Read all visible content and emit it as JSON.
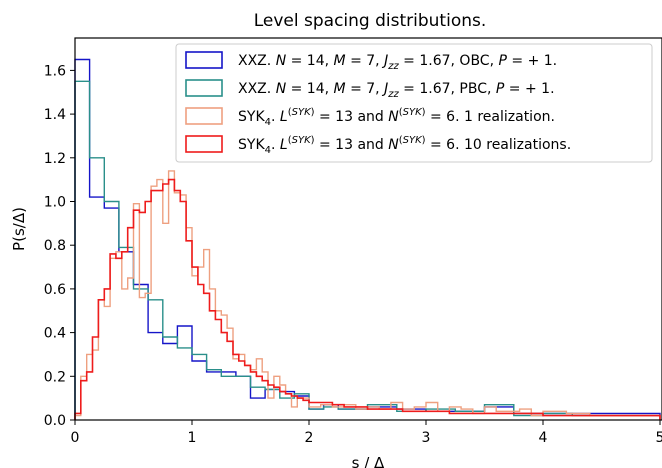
{
  "chart_data": {
    "type": "line",
    "title": "Level spacing distributions.",
    "xlabel": "s / Δ",
    "ylabel": "P(s/Δ)",
    "xlim": [
      0,
      5
    ],
    "ylim": [
      0,
      1.75
    ],
    "xticks": [
      "0",
      "1",
      "2",
      "3",
      "4",
      "5"
    ],
    "yticks": [
      "0.0",
      "0.2",
      "0.4",
      "0.6",
      "0.8",
      "1.0",
      "1.2",
      "1.4",
      "1.6"
    ],
    "legend_position": "top-right",
    "series": [
      {
        "name": "XXZ. N = 14, M = 7, Jzz = 1.67, OBC, P = +1.",
        "legend_text": "XXZ. N = 14, M = 7, J_zz = 1.67, OBC, P = + 1.",
        "color": "#1515c8",
        "bin_edges": [
          0,
          0.125,
          0.25,
          0.375,
          0.5,
          0.625,
          0.75,
          0.875,
          1.0,
          1.125,
          1.25,
          1.375,
          1.5,
          1.625,
          1.75,
          1.875,
          2.0,
          2.125,
          2.25,
          2.5,
          2.75,
          3.0,
          3.25,
          3.5,
          3.75,
          4.0,
          4.25,
          4.5,
          5.0
        ],
        "values": [
          1.65,
          1.02,
          0.97,
          0.77,
          0.62,
          0.4,
          0.35,
          0.43,
          0.27,
          0.22,
          0.22,
          0.2,
          0.1,
          0.14,
          0.13,
          0.11,
          0.05,
          0.07,
          0.05,
          0.06,
          0.05,
          0.04,
          0.04,
          0.06,
          0.03,
          0.03,
          0.03,
          0.03
        ]
      },
      {
        "name": "XXZ. N = 14, M = 7, Jzz = 1.67, PBC, P = +1.",
        "legend_text": "XXZ. N = 14, M = 7, J_zz = 1.67, PBC, P = + 1.",
        "color": "#2a8f8a",
        "bin_edges": [
          0,
          0.125,
          0.25,
          0.375,
          0.5,
          0.625,
          0.75,
          0.875,
          1.0,
          1.125,
          1.25,
          1.375,
          1.5,
          1.625,
          1.75,
          1.875,
          2.0,
          2.125,
          2.25,
          2.5,
          2.75,
          3.0,
          3.25,
          3.5,
          3.75,
          4.0,
          4.25,
          4.5,
          5.0
        ],
        "values": [
          1.55,
          1.2,
          1.0,
          0.79,
          0.6,
          0.55,
          0.38,
          0.33,
          0.3,
          0.23,
          0.2,
          0.2,
          0.15,
          0.14,
          0.1,
          0.12,
          0.05,
          0.06,
          0.05,
          0.07,
          0.04,
          0.05,
          0.04,
          0.07,
          0.02,
          0.03,
          0.02,
          0.02
        ]
      },
      {
        "name": "SYK4. L(SYK) = 13 and N(SYK) = 6. 1 realization.",
        "legend_text": "SYK4. L(SYK) = 13 and N(SYK) = 6. 1 realization.",
        "color": "#eea080",
        "bin_edges": [
          0,
          0.05,
          0.1,
          0.15,
          0.2,
          0.25,
          0.3,
          0.35,
          0.4,
          0.45,
          0.5,
          0.55,
          0.6,
          0.65,
          0.7,
          0.75,
          0.8,
          0.85,
          0.9,
          0.95,
          1.0,
          1.05,
          1.1,
          1.15,
          1.2,
          1.25,
          1.3,
          1.35,
          1.4,
          1.45,
          1.5,
          1.55,
          1.6,
          1.65,
          1.7,
          1.75,
          1.8,
          1.85,
          1.9,
          1.95,
          2.0,
          2.1,
          2.2,
          2.3,
          2.4,
          2.5,
          2.6,
          2.7,
          2.8,
          2.9,
          3.0,
          3.1,
          3.2,
          3.3,
          3.4,
          3.5,
          3.6,
          3.7,
          3.8,
          3.9,
          4.0,
          4.2,
          4.4,
          4.6,
          4.8,
          5.0
        ],
        "values": [
          0.02,
          0.2,
          0.3,
          0.32,
          0.55,
          0.52,
          0.74,
          0.77,
          0.6,
          0.65,
          0.99,
          0.56,
          0.58,
          1.07,
          1.1,
          0.9,
          1.14,
          1.04,
          1.03,
          0.88,
          0.66,
          0.7,
          0.78,
          0.6,
          0.5,
          0.48,
          0.42,
          0.28,
          0.3,
          0.25,
          0.23,
          0.28,
          0.22,
          0.1,
          0.2,
          0.16,
          0.12,
          0.06,
          0.1,
          0.1,
          0.06,
          0.07,
          0.06,
          0.07,
          0.05,
          0.06,
          0.05,
          0.08,
          0.05,
          0.06,
          0.08,
          0.04,
          0.06,
          0.05,
          0.03,
          0.06,
          0.04,
          0.04,
          0.05,
          0.02,
          0.04,
          0.03,
          0.02,
          0.02,
          0.02
        ]
      },
      {
        "name": "SYK4. L(SYK) = 13 and N(SYK) = 6. 10 realizations.",
        "legend_text": "SYK4. L(SYK) = 13 and N(SYK) = 6. 10 realizations.",
        "color": "#ee1c1c",
        "bin_edges": [
          0,
          0.05,
          0.1,
          0.15,
          0.2,
          0.25,
          0.3,
          0.35,
          0.4,
          0.45,
          0.5,
          0.55,
          0.6,
          0.65,
          0.7,
          0.75,
          0.8,
          0.85,
          0.9,
          0.95,
          1.0,
          1.05,
          1.1,
          1.15,
          1.2,
          1.25,
          1.3,
          1.35,
          1.4,
          1.45,
          1.5,
          1.55,
          1.6,
          1.65,
          1.7,
          1.75,
          1.8,
          1.85,
          1.9,
          1.95,
          2.0,
          2.1,
          2.2,
          2.3,
          2.4,
          2.5,
          2.6,
          2.7,
          2.8,
          2.9,
          3.0,
          3.2,
          3.4,
          3.6,
          3.8,
          4.0,
          4.2,
          4.4,
          4.6,
          4.8,
          5.0
        ],
        "values": [
          0.03,
          0.18,
          0.22,
          0.38,
          0.55,
          0.6,
          0.76,
          0.74,
          0.77,
          0.88,
          0.96,
          0.95,
          1.0,
          1.05,
          1.05,
          1.08,
          1.1,
          1.05,
          1.0,
          0.82,
          0.7,
          0.62,
          0.58,
          0.5,
          0.46,
          0.4,
          0.36,
          0.3,
          0.27,
          0.25,
          0.22,
          0.2,
          0.18,
          0.16,
          0.15,
          0.13,
          0.12,
          0.11,
          0.1,
          0.09,
          0.08,
          0.08,
          0.07,
          0.06,
          0.06,
          0.05,
          0.05,
          0.05,
          0.04,
          0.04,
          0.04,
          0.03,
          0.03,
          0.03,
          0.03,
          0.02,
          0.02,
          0.02,
          0.02,
          0.02
        ]
      }
    ]
  }
}
